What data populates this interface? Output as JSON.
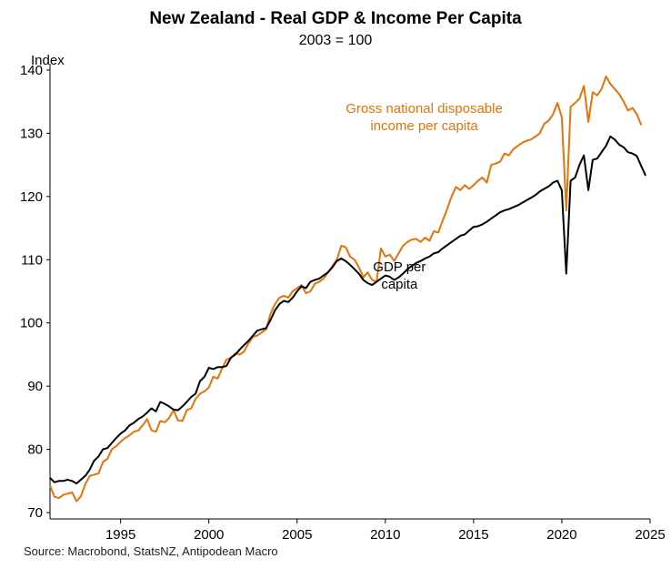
{
  "chart_data": {
    "type": "line",
    "title": "New Zealand - Real GDP & Income Per Capita",
    "subtitle": "2003 = 100",
    "ylabel": "Index",
    "xlabel": "",
    "source": "Source: Macrobond, StatsNZ, Antipodean Macro",
    "xlim": [
      1991.0,
      2025.0
    ],
    "ylim": [
      69,
      141
    ],
    "x_ticks": [
      1995,
      2000,
      2005,
      2010,
      2015,
      2020,
      2025
    ],
    "y_ticks": [
      70,
      80,
      90,
      100,
      110,
      120,
      130,
      140
    ],
    "grid": false,
    "series": [
      {
        "name": "GDP per capita",
        "label_lines": [
          "GDP per",
          "capita"
        ],
        "color": "#000000",
        "points": [
          [
            1991.0,
            75.5
          ],
          [
            1991.25,
            74.8
          ],
          [
            1991.5,
            75.0
          ],
          [
            1991.75,
            75.0
          ],
          [
            1992.0,
            75.2
          ],
          [
            1992.25,
            75.0
          ],
          [
            1992.5,
            74.6
          ],
          [
            1992.75,
            75.2
          ],
          [
            1993.0,
            75.8
          ],
          [
            1993.25,
            76.8
          ],
          [
            1993.5,
            78.2
          ],
          [
            1993.75,
            78.9
          ],
          [
            1994.0,
            80.0
          ],
          [
            1994.25,
            80.2
          ],
          [
            1994.5,
            81.0
          ],
          [
            1994.75,
            81.8
          ],
          [
            1995.0,
            82.5
          ],
          [
            1995.25,
            83.0
          ],
          [
            1995.5,
            83.8
          ],
          [
            1995.75,
            84.2
          ],
          [
            1996.0,
            84.8
          ],
          [
            1996.25,
            85.2
          ],
          [
            1996.5,
            85.8
          ],
          [
            1996.75,
            86.5
          ],
          [
            1997.0,
            86.0
          ],
          [
            1997.25,
            87.5
          ],
          [
            1997.5,
            87.2
          ],
          [
            1997.75,
            86.8
          ],
          [
            1998.0,
            86.3
          ],
          [
            1998.25,
            86.2
          ],
          [
            1998.5,
            86.8
          ],
          [
            1998.75,
            87.5
          ],
          [
            1999.0,
            88.3
          ],
          [
            1999.25,
            88.8
          ],
          [
            1999.5,
            90.8
          ],
          [
            1999.75,
            91.5
          ],
          [
            2000.0,
            92.9
          ],
          [
            2000.25,
            92.7
          ],
          [
            2000.5,
            93.0
          ],
          [
            2000.75,
            93.0
          ],
          [
            2001.0,
            93.2
          ],
          [
            2001.25,
            94.5
          ],
          [
            2001.5,
            95.0
          ],
          [
            2001.75,
            95.8
          ],
          [
            2002.0,
            96.5
          ],
          [
            2002.25,
            97.2
          ],
          [
            2002.5,
            98.0
          ],
          [
            2002.75,
            98.8
          ],
          [
            2003.0,
            99.0
          ],
          [
            2003.25,
            99.2
          ],
          [
            2003.5,
            100.5
          ],
          [
            2003.75,
            102.0
          ],
          [
            2004.0,
            103.0
          ],
          [
            2004.25,
            103.5
          ],
          [
            2004.5,
            103.3
          ],
          [
            2004.75,
            104.0
          ],
          [
            2005.0,
            105.0
          ],
          [
            2005.25,
            105.8
          ],
          [
            2005.5,
            105.5
          ],
          [
            2005.75,
            106.5
          ],
          [
            2006.0,
            106.8
          ],
          [
            2006.25,
            107.0
          ],
          [
            2006.5,
            107.5
          ],
          [
            2006.75,
            108.0
          ],
          [
            2007.0,
            108.8
          ],
          [
            2007.25,
            109.8
          ],
          [
            2007.5,
            110.2
          ],
          [
            2007.75,
            109.8
          ],
          [
            2008.0,
            109.2
          ],
          [
            2008.25,
            108.5
          ],
          [
            2008.5,
            107.8
          ],
          [
            2008.75,
            106.8
          ],
          [
            2009.0,
            106.3
          ],
          [
            2009.25,
            106.0
          ],
          [
            2009.5,
            106.5
          ],
          [
            2009.75,
            107.0
          ],
          [
            2010.0,
            107.5
          ],
          [
            2010.25,
            107.3
          ],
          [
            2010.5,
            106.8
          ],
          [
            2010.75,
            107.2
          ],
          [
            2011.0,
            107.8
          ],
          [
            2011.25,
            108.5
          ],
          [
            2011.5,
            109.0
          ],
          [
            2011.75,
            109.5
          ],
          [
            2012.0,
            109.8
          ],
          [
            2012.25,
            110.2
          ],
          [
            2012.5,
            110.5
          ],
          [
            2012.75,
            111.0
          ],
          [
            2013.0,
            111.2
          ],
          [
            2013.25,
            111.8
          ],
          [
            2013.5,
            112.3
          ],
          [
            2013.75,
            112.8
          ],
          [
            2014.0,
            113.3
          ],
          [
            2014.25,
            113.8
          ],
          [
            2014.5,
            114.0
          ],
          [
            2014.75,
            114.6
          ],
          [
            2015.0,
            115.2
          ],
          [
            2015.25,
            115.3
          ],
          [
            2015.5,
            115.6
          ],
          [
            2015.75,
            116.0
          ],
          [
            2016.0,
            116.5
          ],
          [
            2016.25,
            117.0
          ],
          [
            2016.5,
            117.5
          ],
          [
            2016.75,
            117.8
          ],
          [
            2017.0,
            118.0
          ],
          [
            2017.25,
            118.3
          ],
          [
            2017.5,
            118.6
          ],
          [
            2017.75,
            119.0
          ],
          [
            2018.0,
            119.4
          ],
          [
            2018.25,
            119.8
          ],
          [
            2018.5,
            120.2
          ],
          [
            2018.75,
            120.8
          ],
          [
            2019.0,
            121.2
          ],
          [
            2019.25,
            121.6
          ],
          [
            2019.5,
            122.2
          ],
          [
            2019.75,
            122.5
          ],
          [
            2020.0,
            121.0
          ],
          [
            2020.25,
            107.8
          ],
          [
            2020.5,
            122.5
          ],
          [
            2020.75,
            123.0
          ],
          [
            2021.0,
            125.0
          ],
          [
            2021.25,
            126.5
          ],
          [
            2021.5,
            121.0
          ],
          [
            2021.75,
            125.8
          ],
          [
            2022.0,
            126.0
          ],
          [
            2022.25,
            127.0
          ],
          [
            2022.5,
            128.0
          ],
          [
            2022.75,
            129.5
          ],
          [
            2023.0,
            129.0
          ],
          [
            2023.25,
            128.2
          ],
          [
            2023.5,
            127.8
          ],
          [
            2023.75,
            127.0
          ],
          [
            2024.0,
            126.8
          ],
          [
            2024.25,
            126.4
          ],
          [
            2024.5,
            124.8
          ],
          [
            2024.75,
            123.3
          ]
        ]
      },
      {
        "name": "Gross national disposable income per capita",
        "label_lines": [
          "Gross national disposable",
          "income per capita"
        ],
        "color": "#E57309",
        "points": [
          [
            1991.0,
            74.3
          ],
          [
            1991.25,
            72.5
          ],
          [
            1991.5,
            72.3
          ],
          [
            1991.75,
            72.8
          ],
          [
            1992.0,
            73.0
          ],
          [
            1992.25,
            73.2
          ],
          [
            1992.5,
            71.8
          ],
          [
            1992.75,
            72.6
          ],
          [
            1993.0,
            74.5
          ],
          [
            1993.25,
            75.8
          ],
          [
            1993.5,
            76.0
          ],
          [
            1993.75,
            76.2
          ],
          [
            1994.0,
            78.0
          ],
          [
            1994.25,
            78.5
          ],
          [
            1994.5,
            80.0
          ],
          [
            1994.75,
            80.5
          ],
          [
            1995.0,
            81.2
          ],
          [
            1995.25,
            81.8
          ],
          [
            1995.5,
            82.2
          ],
          [
            1995.75,
            82.8
          ],
          [
            1996.0,
            83.0
          ],
          [
            1996.25,
            83.8
          ],
          [
            1996.5,
            84.8
          ],
          [
            1996.75,
            83.0
          ],
          [
            1997.0,
            82.8
          ],
          [
            1997.25,
            84.5
          ],
          [
            1997.5,
            84.3
          ],
          [
            1997.75,
            85.0
          ],
          [
            1998.0,
            86.2
          ],
          [
            1998.25,
            84.6
          ],
          [
            1998.5,
            84.5
          ],
          [
            1998.75,
            86.2
          ],
          [
            1999.0,
            86.5
          ],
          [
            1999.25,
            88.0
          ],
          [
            1999.5,
            88.8
          ],
          [
            1999.75,
            89.2
          ],
          [
            2000.0,
            89.8
          ],
          [
            2000.25,
            91.5
          ],
          [
            2000.5,
            91.2
          ],
          [
            2000.75,
            92.8
          ],
          [
            2001.0,
            94.2
          ],
          [
            2001.25,
            94.5
          ],
          [
            2001.5,
            95.2
          ],
          [
            2001.75,
            95.0
          ],
          [
            2002.0,
            95.5
          ],
          [
            2002.25,
            96.8
          ],
          [
            2002.5,
            97.8
          ],
          [
            2002.75,
            98.0
          ],
          [
            2003.0,
            98.5
          ],
          [
            2003.25,
            99.0
          ],
          [
            2003.5,
            101.5
          ],
          [
            2003.75,
            103.0
          ],
          [
            2004.0,
            104.0
          ],
          [
            2004.25,
            104.3
          ],
          [
            2004.5,
            104.0
          ],
          [
            2004.75,
            105.0
          ],
          [
            2005.0,
            105.5
          ],
          [
            2005.25,
            106.0
          ],
          [
            2005.5,
            104.7
          ],
          [
            2005.75,
            105.0
          ],
          [
            2006.0,
            106.2
          ],
          [
            2006.25,
            106.5
          ],
          [
            2006.5,
            107.0
          ],
          [
            2006.75,
            108.0
          ],
          [
            2007.0,
            109.0
          ],
          [
            2007.25,
            110.0
          ],
          [
            2007.5,
            112.2
          ],
          [
            2007.75,
            112.0
          ],
          [
            2008.0,
            110.5
          ],
          [
            2008.25,
            110.0
          ],
          [
            2008.5,
            108.8
          ],
          [
            2008.75,
            107.2
          ],
          [
            2009.0,
            108.0
          ],
          [
            2009.25,
            106.8
          ],
          [
            2009.5,
            106.5
          ],
          [
            2009.75,
            111.8
          ],
          [
            2010.0,
            110.5
          ],
          [
            2010.25,
            110.8
          ],
          [
            2010.5,
            109.8
          ],
          [
            2010.75,
            111.0
          ],
          [
            2011.0,
            112.2
          ],
          [
            2011.25,
            112.8
          ],
          [
            2011.5,
            113.2
          ],
          [
            2011.75,
            113.3
          ],
          [
            2012.0,
            112.8
          ],
          [
            2012.25,
            113.5
          ],
          [
            2012.5,
            113.0
          ],
          [
            2012.75,
            114.5
          ],
          [
            2013.0,
            114.3
          ],
          [
            2013.25,
            116.2
          ],
          [
            2013.5,
            118.0
          ],
          [
            2013.75,
            120.0
          ],
          [
            2014.0,
            121.5
          ],
          [
            2014.25,
            121.0
          ],
          [
            2014.5,
            121.8
          ],
          [
            2014.75,
            121.2
          ],
          [
            2015.0,
            121.8
          ],
          [
            2015.25,
            122.5
          ],
          [
            2015.5,
            123.0
          ],
          [
            2015.75,
            122.2
          ],
          [
            2016.0,
            125.0
          ],
          [
            2016.25,
            125.2
          ],
          [
            2016.5,
            125.5
          ],
          [
            2016.75,
            126.8
          ],
          [
            2017.0,
            126.5
          ],
          [
            2017.25,
            127.5
          ],
          [
            2017.5,
            128.0
          ],
          [
            2017.75,
            128.5
          ],
          [
            2018.0,
            128.8
          ],
          [
            2018.25,
            129.0
          ],
          [
            2018.5,
            129.5
          ],
          [
            2018.75,
            130.0
          ],
          [
            2019.0,
            131.5
          ],
          [
            2019.25,
            132.0
          ],
          [
            2019.5,
            133.0
          ],
          [
            2019.75,
            134.8
          ],
          [
            2020.0,
            132.5
          ],
          [
            2020.25,
            117.8
          ],
          [
            2020.5,
            134.2
          ],
          [
            2020.75,
            134.8
          ],
          [
            2021.0,
            135.5
          ],
          [
            2021.25,
            137.5
          ],
          [
            2021.5,
            131.8
          ],
          [
            2021.75,
            136.5
          ],
          [
            2022.0,
            136.0
          ],
          [
            2022.25,
            137.0
          ],
          [
            2022.5,
            139.0
          ],
          [
            2022.75,
            137.8
          ],
          [
            2023.0,
            137.0
          ],
          [
            2023.25,
            136.2
          ],
          [
            2023.5,
            135.0
          ],
          [
            2023.75,
            133.6
          ],
          [
            2024.0,
            134.0
          ],
          [
            2024.25,
            133.0
          ],
          [
            2024.5,
            131.3
          ]
        ]
      }
    ]
  }
}
